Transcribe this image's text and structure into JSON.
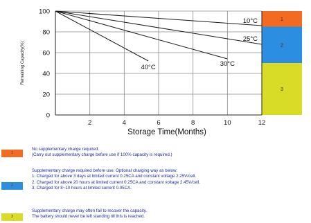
{
  "chart_data": {
    "type": "line",
    "title": "",
    "xlabel": "Storage Time(Months)",
    "ylabel": "Remaining Capacity(%)",
    "xlim": [
      0,
      12
    ],
    "ylim": [
      0,
      100
    ],
    "xticks": [
      2,
      4,
      6,
      8,
      10,
      12
    ],
    "yticks": [
      0,
      20,
      40,
      60,
      80,
      100
    ],
    "grid": true,
    "series": [
      {
        "name": "10°C",
        "x": [
          0,
          12
        ],
        "y": [
          100,
          86
        ]
      },
      {
        "name": "25°C",
        "x": [
          0,
          12
        ],
        "y": [
          100,
          68
        ]
      },
      {
        "name": "30°C",
        "x": [
          0,
          10
        ],
        "y": [
          100,
          54
        ]
      },
      {
        "name": "40°C",
        "x": [
          0,
          5.4
        ],
        "y": [
          100,
          52
        ]
      }
    ],
    "zones": [
      {
        "label": "1",
        "from": 85,
        "to": 100,
        "color": "#f26b21"
      },
      {
        "label": "2",
        "from": 50,
        "to": 85,
        "color": "#2b8ee0"
      },
      {
        "label": "3",
        "from": 0,
        "to": 50,
        "color": "#d8dc27"
      }
    ]
  },
  "legend": [
    {
      "label": "1",
      "color": "#f26b21",
      "lines": [
        "No supplementary charge required.",
        "(Carry out supplementary charge before use if 100% capacity is required.)"
      ]
    },
    {
      "label": "2",
      "color": "#2b8ee0",
      "lines": [
        "Supplementary charge required before use. Optional charging way as below:",
        "1. Charged for above 3 days at limited current 0.25CA and constant voltage 2.25V/cell.",
        "2. Charged for above 20 hours at limited current 0.25CA and constant voltage 2.45V/cell.",
        "3. Charged for 8~10 hours at limited current 0.05CA."
      ]
    },
    {
      "label": "3",
      "color": "#d8dc27",
      "lines": [
        "Supplementary charge may often fail to recover the capacity.",
        "The battery should never be left standing till this is reached."
      ]
    }
  ]
}
